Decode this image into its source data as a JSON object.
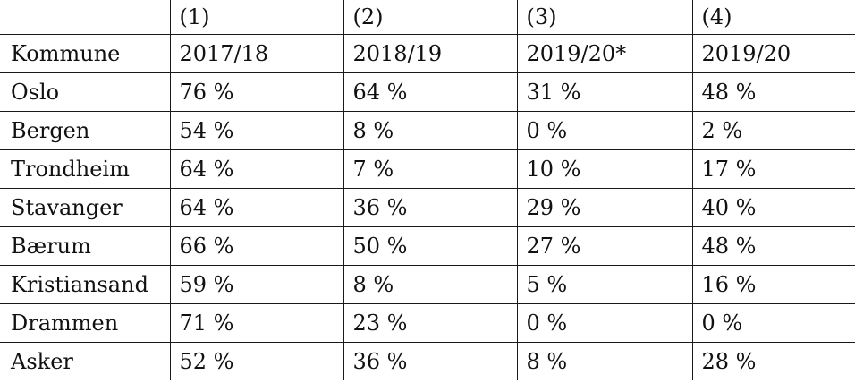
{
  "table": {
    "column_numbers": [
      "(1)",
      "(2)",
      "(3)",
      "(4)"
    ],
    "header": [
      "Kommune",
      "2017/18",
      "2018/19",
      "2019/20*",
      "2019/20"
    ],
    "rows": [
      [
        "Oslo",
        "76 %",
        "64 %",
        "31 %",
        "48 %"
      ],
      [
        "Bergen",
        "54 %",
        "8 %",
        "0 %",
        "2 %"
      ],
      [
        "Trondheim",
        "64 %",
        "7 %",
        "10 %",
        "17 %"
      ],
      [
        "Stavanger",
        "64 %",
        "36 %",
        "29 %",
        "40 %"
      ],
      [
        "Bærum",
        "66 %",
        "50 %",
        "27 %",
        "48 %"
      ],
      [
        "Kristiansand",
        "59 %",
        "8 %",
        "5 %",
        "16 %"
      ],
      [
        "Drammen",
        "71 %",
        "23 %",
        "0 %",
        "0 %"
      ],
      [
        "Asker",
        "52 %",
        "36 %",
        "8 %",
        "28 %"
      ]
    ]
  }
}
